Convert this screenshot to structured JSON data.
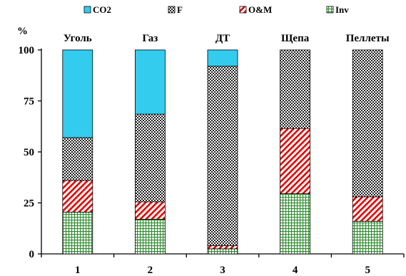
{
  "chart_data": {
    "type": "bar",
    "stacked": true,
    "ylabel": "%",
    "ylim": [
      0,
      100
    ],
    "yticks": [
      0,
      25,
      50,
      75,
      100
    ],
    "categories": [
      "1",
      "2",
      "3",
      "4",
      "5"
    ],
    "top_labels": [
      "Уголь",
      "Газ",
      "ДТ",
      "Щепа",
      "Пеллеты"
    ],
    "legend_position": "top",
    "series": [
      {
        "name": "Inv",
        "values": [
          20.5,
          17,
          2.5,
          29.5,
          16
        ],
        "color": "#2e8b2e",
        "pattern": "grid"
      },
      {
        "name": "O&M",
        "values": [
          15.5,
          8.5,
          1.5,
          32,
          12
        ],
        "color": "#e60000",
        "pattern": "diagonal"
      },
      {
        "name": "F",
        "values": [
          21,
          43,
          88,
          38.5,
          72
        ],
        "color": "#333333",
        "pattern": "dots"
      },
      {
        "name": "CO2",
        "values": [
          43,
          31.5,
          8,
          0,
          0
        ],
        "color": "#33ccee",
        "pattern": "solid"
      }
    ],
    "legend_order": [
      "CO2",
      "F",
      "O&M",
      "Inv"
    ]
  }
}
